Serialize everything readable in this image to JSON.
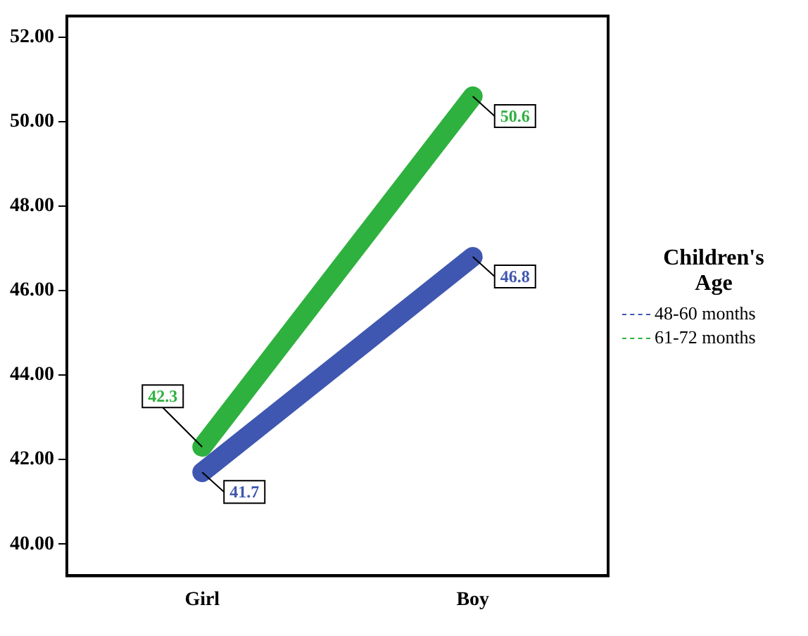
{
  "chart_data": {
    "type": "line",
    "categories": [
      "Girl",
      "Boy"
    ],
    "series": [
      {
        "name": "48-60 months",
        "color": "#3f57b0",
        "values": [
          41.7,
          46.8
        ]
      },
      {
        "name": "61-72 months",
        "color": "#2fb13f",
        "values": [
          42.3,
          50.6
        ]
      }
    ],
    "ylim": [
      39.25,
      52.5
    ],
    "yticks": [
      {
        "value": 40,
        "label": "40.00"
      },
      {
        "value": 42,
        "label": "42.00"
      },
      {
        "value": 44,
        "label": "44.00"
      },
      {
        "value": 46,
        "label": "46.00"
      },
      {
        "value": 48,
        "label": "48.00"
      },
      {
        "value": 50,
        "label": "50.00"
      },
      {
        "value": 52,
        "label": "52.00"
      }
    ],
    "legend_title": "Children's Age",
    "legend": "right",
    "grid": false,
    "marker": "none",
    "line_style": "solid",
    "data_labels": true
  }
}
